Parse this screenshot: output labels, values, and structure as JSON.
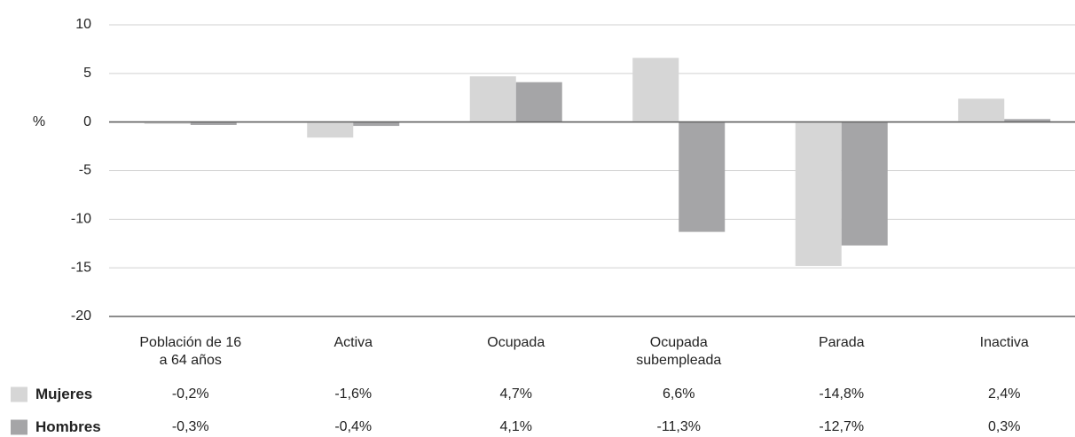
{
  "chart_data": {
    "type": "bar",
    "y_label": "%",
    "categories": [
      "Población de 16\na 64 años",
      "Activa",
      "Ocupada",
      "Ocupada\nsubempleada",
      "Parada",
      "Inactiva"
    ],
    "series": [
      {
        "name": "Mujeres",
        "color": "#d6d6d6",
        "values": [
          -0.2,
          -1.6,
          4.7,
          6.6,
          -14.8,
          2.4
        ],
        "value_labels": [
          "-0,2%",
          "-1,6%",
          "4,7%",
          "6,6%",
          "-14,8%",
          "2,4%"
        ]
      },
      {
        "name": "Hombres",
        "color": "#a5a5a7",
        "values": [
          -0.3,
          -0.4,
          4.1,
          -11.3,
          -12.7,
          0.3
        ],
        "value_labels": [
          "-0,3%",
          "-0,4%",
          "4,1%",
          "-11,3%",
          "-12,7%",
          "0,3%"
        ]
      }
    ],
    "ylim": [
      -20,
      10
    ],
    "yticks": [
      10,
      5,
      0,
      -5,
      -10,
      -15,
      -20
    ],
    "grid": true
  }
}
